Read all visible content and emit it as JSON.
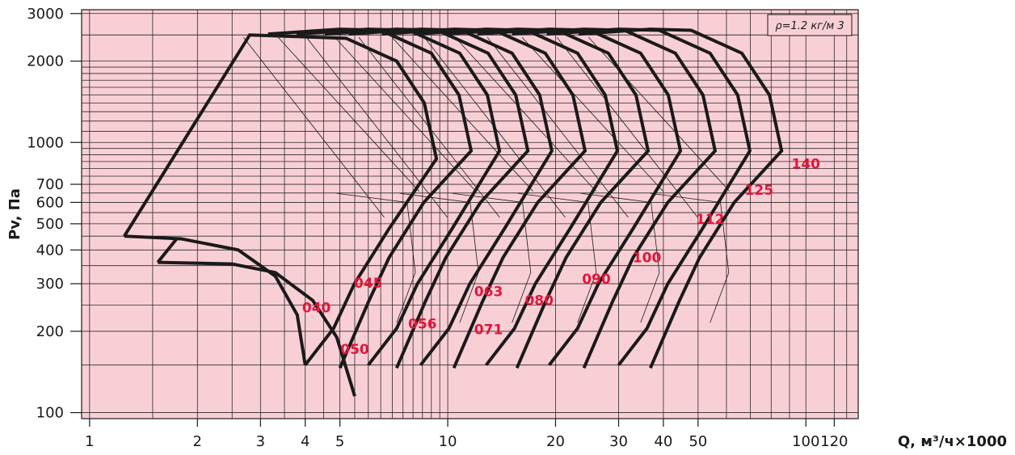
{
  "chart_data": {
    "type": "line",
    "title": "",
    "xlabel": "Q, м³/ч×1000",
    "ylabel": "Pv, Па",
    "x_scale": "log",
    "y_scale": "log",
    "xlim": [
      0.95,
      140
    ],
    "ylim": [
      95,
      3100
    ],
    "x_ticks": [
      1,
      2,
      3,
      4,
      5,
      10,
      20,
      30,
      40,
      50,
      100,
      120
    ],
    "x_tick_labels": [
      "1",
      "2",
      "3",
      "4",
      "5",
      "10",
      "20",
      "30",
      "40",
      "50",
      "100",
      "120"
    ],
    "y_ticks": [
      100,
      200,
      300,
      400,
      500,
      600,
      700,
      1000,
      2000,
      3000
    ],
    "y_tick_labels": [
      "100",
      "200",
      "300",
      "400",
      "500",
      "600",
      "700",
      "1000",
      "2000",
      "3000"
    ],
    "annotation": "ρ=1.2 кг/м 3",
    "background_color": "#f9cfd6",
    "label_color": "#e3163b",
    "grid": true,
    "series": [
      {
        "name": "040",
        "label_at": [
          4.3,
          235
        ]
      },
      {
        "name": "045",
        "label_at": [
          6.0,
          290
        ]
      },
      {
        "name": "050",
        "label_at": [
          5.5,
          165
        ]
      },
      {
        "name": "056",
        "label_at": [
          8.5,
          205
        ]
      },
      {
        "name": "063",
        "label_at": [
          13.0,
          270
        ]
      },
      {
        "name": "071",
        "label_at": [
          13.0,
          195
        ]
      },
      {
        "name": "080",
        "label_at": [
          18.0,
          250
        ]
      },
      {
        "name": "090",
        "label_at": [
          26.0,
          300
        ]
      },
      {
        "name": "100",
        "label_at": [
          36.0,
          360
        ]
      },
      {
        "name": "112",
        "label_at": [
          54.0,
          500
        ]
      },
      {
        "name": "125",
        "label_at": [
          74.0,
          640
        ]
      },
      {
        "name": "140",
        "label_at": [
          100.0,
          800
        ]
      }
    ]
  }
}
